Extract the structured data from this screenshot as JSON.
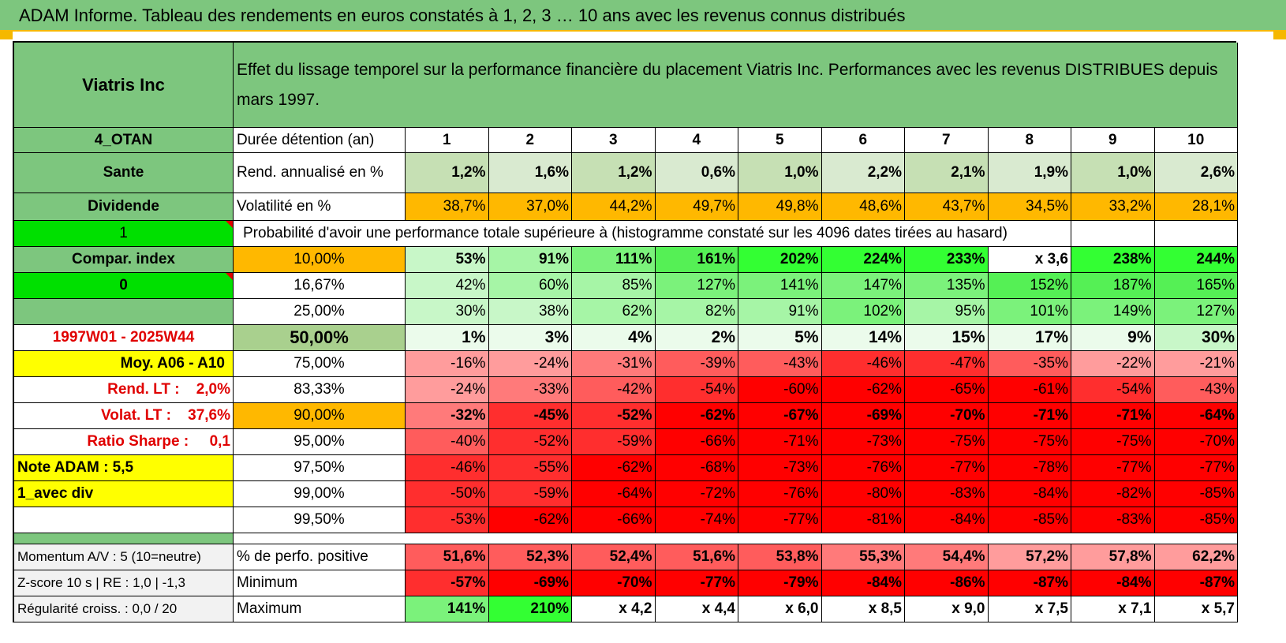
{
  "title": "ADAM Informe. Tableau des rendements en euros constatés à 1, 2, 3 … 10 ans avec les revenus connus distribués",
  "header": {
    "company": "Viatris Inc",
    "description": "Effet du lissage temporel sur la performance financière du placement Viatris Inc. Performances avec les revenus DISTRIBUES depuis mars 1997."
  },
  "info": {
    "code": "4_OTAN",
    "sector": "Sante",
    "type": "Dividende",
    "flag1": "1",
    "compar_label": "Compar. index",
    "flag0": "0",
    "period": "1997W01 - 2025W44",
    "moy": "Moy. A06 - A10",
    "rend_lt": "Rend. LT :    2,0%",
    "volat_lt": "Volat. LT :    37,6%",
    "sharpe": "Ratio Sharpe :     0,1",
    "note": "Note ADAM : 5,5",
    "avec_div": "1_avec div"
  },
  "labels": {
    "duree": "Durée détention (an)",
    "rend": "Rend. annualisé en %",
    "volat": "Volatilité en %",
    "proba": "Probabilité d'avoir une performance totale supérieure à (histogramme constaté sur les 4096 dates tirées au hasard)",
    "momentum": "Momentum A/V : 5 (10=neutre)",
    "zscore": "Z-score 10 s | RE : 1,0 | -1,3",
    "regul": "Régularité croiss. : 0,0 / 20",
    "pct_pos": "% de perfo. positive",
    "minimum": "Minimum",
    "maximum": "Maximum"
  },
  "years": [
    "1",
    "2",
    "3",
    "4",
    "5",
    "6",
    "7",
    "8",
    "9",
    "10"
  ],
  "rend": [
    "1,2%",
    "1,6%",
    "1,2%",
    "0,6%",
    "1,0%",
    "2,2%",
    "2,1%",
    "1,9%",
    "1,0%",
    "2,6%"
  ],
  "volat": [
    "38,7%",
    "37,0%",
    "44,2%",
    "49,7%",
    "49,8%",
    "48,6%",
    "43,7%",
    "34,5%",
    "33,2%",
    "28,1%"
  ],
  "percentiles": [
    {
      "label": "10,00%",
      "values": [
        "53%",
        "91%",
        "111%",
        "161%",
        "202%",
        "224%",
        "233%",
        "x 3,6",
        "238%",
        "244%"
      ]
    },
    {
      "label": "16,67%",
      "values": [
        "42%",
        "60%",
        "85%",
        "127%",
        "141%",
        "147%",
        "135%",
        "152%",
        "187%",
        "165%"
      ]
    },
    {
      "label": "25,00%",
      "values": [
        "30%",
        "38%",
        "62%",
        "82%",
        "91%",
        "102%",
        "95%",
        "101%",
        "149%",
        "127%"
      ]
    },
    {
      "label": "50,00%",
      "values": [
        "1%",
        "3%",
        "4%",
        "2%",
        "5%",
        "14%",
        "15%",
        "17%",
        "9%",
        "30%"
      ]
    },
    {
      "label": "75,00%",
      "values": [
        "-16%",
        "-24%",
        "-31%",
        "-39%",
        "-43%",
        "-46%",
        "-47%",
        "-35%",
        "-22%",
        "-21%"
      ]
    },
    {
      "label": "83,33%",
      "values": [
        "-24%",
        "-33%",
        "-42%",
        "-54%",
        "-60%",
        "-62%",
        "-65%",
        "-61%",
        "-54%",
        "-43%"
      ]
    },
    {
      "label": "90,00%",
      "values": [
        "-32%",
        "-45%",
        "-52%",
        "-62%",
        "-67%",
        "-69%",
        "-70%",
        "-71%",
        "-71%",
        "-64%"
      ]
    },
    {
      "label": "95,00%",
      "values": [
        "-40%",
        "-52%",
        "-59%",
        "-66%",
        "-71%",
        "-73%",
        "-75%",
        "-75%",
        "-75%",
        "-70%"
      ]
    },
    {
      "label": "97,50%",
      "values": [
        "-46%",
        "-55%",
        "-62%",
        "-68%",
        "-73%",
        "-76%",
        "-77%",
        "-78%",
        "-77%",
        "-77%"
      ]
    },
    {
      "label": "99,00%",
      "values": [
        "-50%",
        "-59%",
        "-64%",
        "-72%",
        "-76%",
        "-80%",
        "-83%",
        "-84%",
        "-82%",
        "-85%"
      ]
    },
    {
      "label": "99,50%",
      "values": [
        "-53%",
        "-62%",
        "-66%",
        "-74%",
        "-77%",
        "-81%",
        "-84%",
        "-85%",
        "-83%",
        "-85%"
      ]
    }
  ],
  "pct_pos": [
    "51,6%",
    "52,3%",
    "52,4%",
    "51,6%",
    "53,8%",
    "55,3%",
    "54,4%",
    "57,2%",
    "57,8%",
    "62,2%"
  ],
  "minimum": [
    "-57%",
    "-69%",
    "-70%",
    "-77%",
    "-79%",
    "-84%",
    "-86%",
    "-87%",
    "-84%",
    "-87%"
  ],
  "maximum": [
    "141%",
    "210%",
    "x 4,2",
    "x 4,4",
    "x 6,0",
    "x 8,5",
    "x 9,0",
    "x 7,5",
    "x 7,1",
    "x 5,7"
  ],
  "colors": {
    "header_green": "#7dc67e",
    "lime": "#00e000",
    "yellow": "#ffff00",
    "orange": "#ffb800",
    "light_green": "#c6e0b4",
    "alert_red": "#e00000"
  }
}
